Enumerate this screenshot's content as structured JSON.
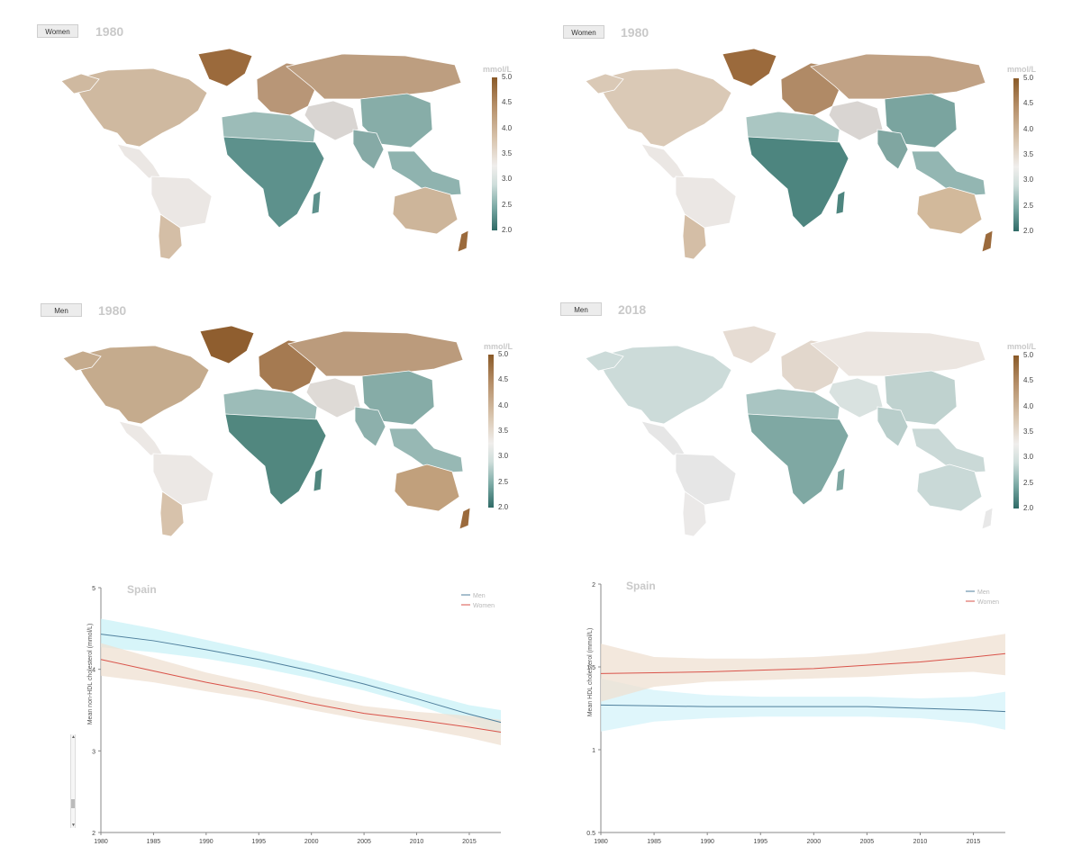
{
  "maps": [
    {
      "sex_label": "Women",
      "year": "1980",
      "legend_title": "mmol/L",
      "ticks": [
        "5.0",
        "4.5",
        "4.0",
        "3.5",
        "3.0",
        "2.5",
        "2.0"
      ],
      "colors": {
        "na": "#cfb9a0",
        "greenland": "#9b6a3c",
        "sa_north": "#ebe7e4",
        "sa_south": "#d4bea6",
        "europe": "#b89677",
        "russia": "#bd9e80",
        "china": "#87ada8",
        "mideast": "#d9d5d2",
        "africa_n": "#9cbcb8",
        "africa": "#5d918c",
        "india": "#86aaa6",
        "sea": "#8fb3af",
        "aus": "#cdb59a",
        "nz": "#9b6a3c"
      }
    },
    {
      "sex_label": "Women",
      "year": "1980",
      "legend_title": "mmol/L",
      "ticks": [
        "5.0",
        "4.5",
        "4.0",
        "3.5",
        "3.0",
        "2.5",
        "2.0"
      ],
      "colors": {
        "na": "#dac9b6",
        "greenland": "#9b6a3c",
        "sa_north": "#ebe7e4",
        "sa_south": "#d4bea6",
        "europe": "#b08a66",
        "russia": "#c1a285",
        "china": "#7aa49f",
        "mideast": "#d9d5d2",
        "africa_n": "#aac6c2",
        "africa": "#4d857f",
        "india": "#80a6a1",
        "sea": "#93b6b2",
        "aus": "#d2b99b",
        "nz": "#9b6a3c"
      }
    },
    {
      "sex_label": "Men",
      "year": "1980",
      "legend_title": "mmol/L",
      "ticks": [
        "5.0",
        "4.5",
        "4.0",
        "3.5",
        "3.0",
        "2.5",
        "2.0"
      ],
      "colors": {
        "na": "#c5ab8d",
        "greenland": "#8f5e2f",
        "sa_north": "#ece8e5",
        "sa_south": "#d7c2ab",
        "europe": "#a57a51",
        "russia": "#bb9b7c",
        "china": "#86aca7",
        "mideast": "#dedad6",
        "africa_n": "#9cbcb8",
        "africa": "#51877f",
        "india": "#8db0ac",
        "sea": "#97b8b4",
        "aus": "#c1a07c",
        "nz": "#9b6a3c"
      }
    },
    {
      "sex_label": "Men",
      "year": "2018",
      "legend_title": "mmol/L",
      "ticks": [
        "5.0",
        "4.5",
        "4.0",
        "3.5",
        "3.0",
        "2.5",
        "2.0"
      ],
      "colors": {
        "na": "#ccdbd9",
        "greenland": "#e6dcd3",
        "sa_north": "#e6e6e6",
        "sa_south": "#ebe9e8",
        "europe": "#e2d7cc",
        "russia": "#ece6e1",
        "china": "#bfd2cf",
        "mideast": "#d9e2e0",
        "africa_n": "#a9c5c2",
        "africa": "#7fa8a3",
        "india": "#b9cecb",
        "sea": "#cad9d7",
        "aus": "#c9d9d7",
        "nz": "#e8e8e8"
      }
    }
  ],
  "charts": {
    "left": {
      "title": "Spain",
      "chart_data": {
        "type": "line",
        "x": [
          1980,
          1985,
          1990,
          1995,
          2000,
          2005,
          2010,
          2015,
          2018
        ],
        "xticks": [
          "1980",
          "1985",
          "1990",
          "1995",
          "2000",
          "2005",
          "2010",
          "2015"
        ],
        "ylabel": "Mean non-HDL cholesterol (mmol/L)",
        "ylim": [
          2,
          5
        ],
        "yticks": [
          "2",
          "3",
          "4",
          "5"
        ],
        "legend_position": "top-right",
        "series": [
          {
            "name": "Men",
            "color": "#4f7f9c",
            "band": "#c9f2f7",
            "values": [
              4.43,
              4.35,
              4.24,
              4.12,
              3.98,
              3.82,
              3.64,
              3.45,
              3.35
            ],
            "lower": [
              4.27,
              4.21,
              4.13,
              4.02,
              3.89,
              3.74,
              3.56,
              3.35,
              3.2
            ],
            "upper": [
              4.62,
              4.5,
              4.36,
              4.22,
              4.07,
              3.91,
              3.73,
              3.56,
              3.5
            ]
          },
          {
            "name": "Women",
            "color": "#d9534a",
            "band": "#efe0d2",
            "values": [
              4.12,
              3.98,
              3.84,
              3.72,
              3.58,
              3.46,
              3.38,
              3.29,
              3.23
            ],
            "lower": [
              3.92,
              3.84,
              3.73,
              3.63,
              3.5,
              3.38,
              3.28,
              3.16,
              3.07
            ],
            "upper": [
              4.32,
              4.14,
              3.96,
              3.82,
              3.67,
              3.55,
              3.48,
              3.43,
              3.38
            ]
          }
        ]
      }
    },
    "right": {
      "title": "Spain",
      "chart_data": {
        "type": "line",
        "x": [
          1980,
          1985,
          1990,
          1995,
          2000,
          2005,
          2010,
          2015,
          2018
        ],
        "xticks": [
          "1980",
          "1985",
          "1990",
          "1995",
          "2000",
          "2005",
          "2010",
          "2015"
        ],
        "ylabel": "Mean HDL cholesterol (mmol/L)",
        "ylim": [
          0.5,
          2
        ],
        "yticks": [
          "0.5",
          "1",
          "1.5",
          "2"
        ],
        "legend_position": "top-right",
        "series": [
          {
            "name": "Men",
            "color": "#4f7f9c",
            "band": "#d4f3f9",
            "values": [
              1.27,
              1.265,
              1.26,
              1.26,
              1.26,
              1.26,
              1.25,
              1.24,
              1.23
            ],
            "lower": [
              1.11,
              1.17,
              1.19,
              1.2,
              1.2,
              1.2,
              1.19,
              1.16,
              1.12
            ],
            "upper": [
              1.43,
              1.36,
              1.33,
              1.32,
              1.32,
              1.32,
              1.31,
              1.32,
              1.35
            ]
          },
          {
            "name": "Women",
            "color": "#d9534a",
            "band": "#efe0d2",
            "values": [
              1.46,
              1.465,
              1.47,
              1.48,
              1.49,
              1.51,
              1.53,
              1.56,
              1.58
            ],
            "lower": [
              1.29,
              1.38,
              1.41,
              1.42,
              1.43,
              1.44,
              1.46,
              1.47,
              1.45
            ],
            "upper": [
              1.64,
              1.56,
              1.55,
              1.55,
              1.56,
              1.58,
              1.62,
              1.67,
              1.7
            ]
          }
        ]
      }
    }
  }
}
